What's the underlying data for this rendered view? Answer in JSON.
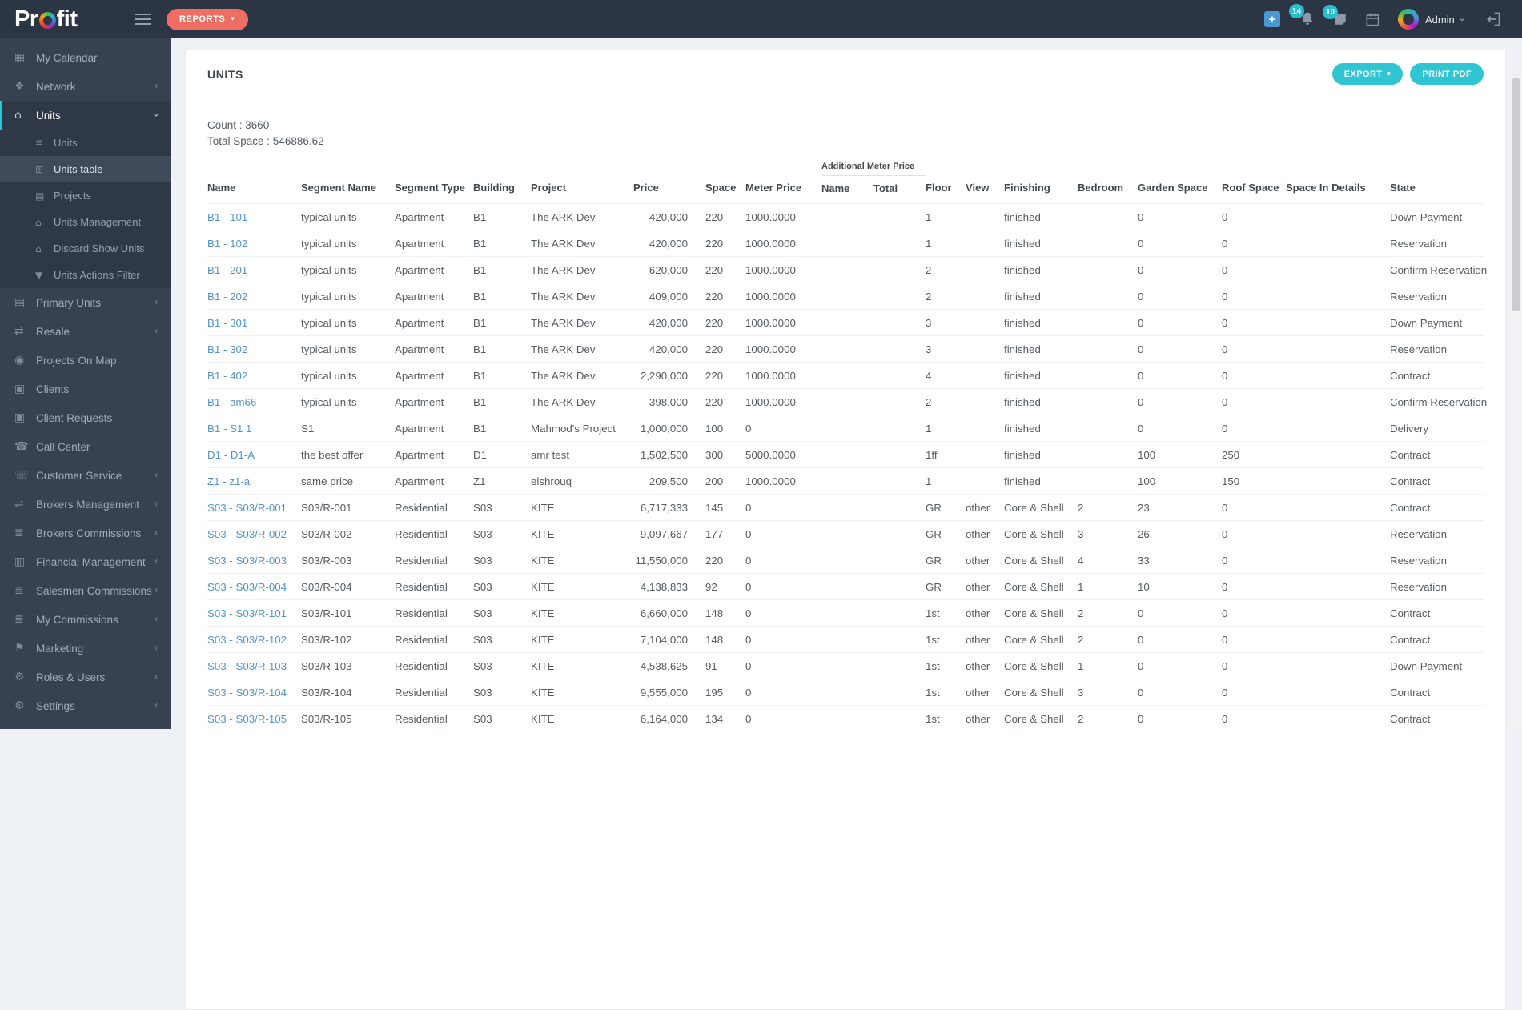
{
  "header": {
    "logo_pre": "Pr",
    "logo_post": "fit",
    "reports_button": "REPORTS",
    "notifications_badge": "14",
    "tasks_badge": "10",
    "user_name": "Admin"
  },
  "sidebar": {
    "items": [
      {
        "label": "My Calendar",
        "icon": "calendar-icon"
      },
      {
        "label": "Network",
        "icon": "network-users-icon",
        "chevron": "left"
      },
      {
        "label": "Units",
        "icon": "home-icon",
        "chevron": "down",
        "active": true
      },
      {
        "label": "Units",
        "icon": "units-list-icon",
        "sub": true
      },
      {
        "label": "Units table",
        "icon": "table-icon",
        "sub": true,
        "current": true
      },
      {
        "label": "Projects",
        "icon": "building-icon",
        "sub": true
      },
      {
        "label": "Units Management",
        "icon": "home-icon",
        "sub": true
      },
      {
        "label": "Discard Show Units",
        "icon": "home-icon",
        "sub": true
      },
      {
        "label": "Units Actions Filter",
        "icon": "filter-icon",
        "sub": true
      },
      {
        "label": "Primary Units",
        "icon": "building-icon",
        "chevron": "left"
      },
      {
        "label": "Resale",
        "icon": "resale-arrows-icon",
        "chevron": "left"
      },
      {
        "label": "Projects On Map",
        "icon": "map-pin-icon"
      },
      {
        "label": "Clients",
        "icon": "id-card-icon"
      },
      {
        "label": "Client Requests",
        "icon": "id-card-icon"
      },
      {
        "label": "Call Center",
        "icon": "phone-icon"
      },
      {
        "label": "Customer Service",
        "icon": "handshake-icon",
        "chevron": "left"
      },
      {
        "label": "Brokers Management",
        "icon": "shuffle-icon",
        "chevron": "left"
      },
      {
        "label": "Brokers Commissions",
        "icon": "money-list-icon",
        "chevron": "left"
      },
      {
        "label": "Financial Management",
        "icon": "bar-chart-icon",
        "chevron": "left"
      },
      {
        "label": "Salesmen Commissions",
        "icon": "money-list-icon",
        "chevron": "left"
      },
      {
        "label": "My Commissions",
        "icon": "money-list-icon",
        "chevron": "left"
      },
      {
        "label": "Marketing",
        "icon": "marketing-icon",
        "chevron": "left"
      },
      {
        "label": "Roles & Users",
        "icon": "gears-icon",
        "chevron": "left"
      },
      {
        "label": "Settings",
        "icon": "gear-icon",
        "chevron": "left"
      }
    ]
  },
  "main": {
    "title": "UNITS",
    "export_button": "EXPORT",
    "print_button": "PRINT PDF",
    "count_label": "Count : 3660",
    "total_space_label": "Total Space : 546886.62",
    "table": {
      "group_header": "Additional Meter Price",
      "columns": [
        "Name",
        "Segment Name",
        "Segment Type",
        "Building",
        "Project",
        "Price",
        "Space",
        "Meter Price",
        "Name",
        "Total",
        "Floor",
        "View",
        "Finishing",
        "Bedroom",
        "Garden Space",
        "Roof Space",
        "Space In Details",
        "State"
      ],
      "rows": [
        [
          "B1 - 101",
          "typical units",
          "Apartment",
          "B1",
          "The ARK Dev",
          "420,000",
          "220",
          "1000.0000",
          "",
          "",
          "1",
          "",
          "finished",
          "",
          "0",
          "0",
          "",
          "Down Payment"
        ],
        [
          "B1 - 102",
          "typical units",
          "Apartment",
          "B1",
          "The ARK Dev",
          "420,000",
          "220",
          "1000.0000",
          "",
          "",
          "1",
          "",
          "finished",
          "",
          "0",
          "0",
          "",
          "Reservation"
        ],
        [
          "B1 - 201",
          "typical units",
          "Apartment",
          "B1",
          "The ARK Dev",
          "620,000",
          "220",
          "1000.0000",
          "",
          "",
          "2",
          "",
          "finished",
          "",
          "0",
          "0",
          "",
          "Confirm Reservation"
        ],
        [
          "B1 - 202",
          "typical units",
          "Apartment",
          "B1",
          "The ARK Dev",
          "409,000",
          "220",
          "1000.0000",
          "",
          "",
          "2",
          "",
          "finished",
          "",
          "0",
          "0",
          "",
          "Reservation"
        ],
        [
          "B1 - 301",
          "typical units",
          "Apartment",
          "B1",
          "The ARK Dev",
          "420,000",
          "220",
          "1000.0000",
          "",
          "",
          "3",
          "",
          "finished",
          "",
          "0",
          "0",
          "",
          "Down Payment"
        ],
        [
          "B1 - 302",
          "typical units",
          "Apartment",
          "B1",
          "The ARK Dev",
          "420,000",
          "220",
          "1000.0000",
          "",
          "",
          "3",
          "",
          "finished",
          "",
          "0",
          "0",
          "",
          "Reservation"
        ],
        [
          "B1 - 402",
          "typical units",
          "Apartment",
          "B1",
          "The ARK Dev",
          "2,290,000",
          "220",
          "1000.0000",
          "",
          "",
          "4",
          "",
          "finished",
          "",
          "0",
          "0",
          "",
          "Contract"
        ],
        [
          "B1 - am66",
          "typical units",
          "Apartment",
          "B1",
          "The ARK Dev",
          "398,000",
          "220",
          "1000.0000",
          "",
          "",
          "2",
          "",
          "finished",
          "",
          "0",
          "0",
          "",
          "Confirm Reservation"
        ],
        [
          "B1 - S1 1",
          "S1",
          "Apartment",
          "B1",
          "Mahmod's Project",
          "1,000,000",
          "100",
          "0",
          "",
          "",
          "1",
          "",
          "finished",
          "",
          "0",
          "0",
          "",
          "Delivery"
        ],
        [
          "D1 - D1-A",
          "the best offer",
          "Apartment",
          "D1",
          "amr test",
          "1,502,500",
          "300",
          "5000.0000",
          "",
          "",
          "1ff",
          "",
          "finished",
          "",
          "100",
          "250",
          "",
          "Contract"
        ],
        [
          "Z1 - z1-a",
          "same price",
          "Apartment",
          "Z1",
          "elshrouq",
          "209,500",
          "200",
          "1000.0000",
          "",
          "",
          "1",
          "",
          "finished",
          "",
          "100",
          "150",
          "",
          "Contract"
        ],
        [
          "S03 - S03/R-001",
          "S03/R-001",
          "Residential",
          "S03",
          "KITE",
          "6,717,333",
          "145",
          "0",
          "",
          "",
          "GR",
          "other",
          "Core & Shell",
          "2",
          "23",
          "0",
          "",
          "Contract"
        ],
        [
          "S03 - S03/R-002",
          "S03/R-002",
          "Residential",
          "S03",
          "KITE",
          "9,097,667",
          "177",
          "0",
          "",
          "",
          "GR",
          "other",
          "Core & Shell",
          "3",
          "26",
          "0",
          "",
          "Reservation"
        ],
        [
          "S03 - S03/R-003",
          "S03/R-003",
          "Residential",
          "S03",
          "KITE",
          "11,550,000",
          "220",
          "0",
          "",
          "",
          "GR",
          "other",
          "Core & Shell",
          "4",
          "33",
          "0",
          "",
          "Reservation"
        ],
        [
          "S03 - S03/R-004",
          "S03/R-004",
          "Residential",
          "S03",
          "KITE",
          "4,138,833",
          "92",
          "0",
          "",
          "",
          "GR",
          "other",
          "Core & Shell",
          "1",
          "10",
          "0",
          "",
          "Reservation"
        ],
        [
          "S03 - S03/R-101",
          "S03/R-101",
          "Residential",
          "S03",
          "KITE",
          "6,660,000",
          "148",
          "0",
          "",
          "",
          "1st",
          "other",
          "Core & Shell",
          "2",
          "0",
          "0",
          "",
          "Contract"
        ],
        [
          "S03 - S03/R-102",
          "S03/R-102",
          "Residential",
          "S03",
          "KITE",
          "7,104,000",
          "148",
          "0",
          "",
          "",
          "1st",
          "other",
          "Core & Shell",
          "2",
          "0",
          "0",
          "",
          "Contract"
        ],
        [
          "S03 - S03/R-103",
          "S03/R-103",
          "Residential",
          "S03",
          "KITE",
          "4,538,625",
          "91",
          "0",
          "",
          "",
          "1st",
          "other",
          "Core & Shell",
          "1",
          "0",
          "0",
          "",
          "Down Payment"
        ],
        [
          "S03 - S03/R-104",
          "S03/R-104",
          "Residential",
          "S03",
          "KITE",
          "9,555,000",
          "195",
          "0",
          "",
          "",
          "1st",
          "other",
          "Core & Shell",
          "3",
          "0",
          "0",
          "",
          "Contract"
        ],
        [
          "S03 - S03/R-105",
          "S03/R-105",
          "Residential",
          "S03",
          "KITE",
          "6,164,000",
          "134",
          "0",
          "",
          "",
          "1st",
          "other",
          "Core & Shell",
          "2",
          "0",
          "0",
          "",
          "Contract"
        ]
      ]
    }
  },
  "colors": {
    "header_bg": "#2b3543",
    "sidebar_bg": "#37414f",
    "accent_cyan": "#2fc5d2",
    "accent_red": "#ef6e63",
    "badge_cyan": "#27bfcd",
    "link_blue": "#5494ca",
    "plus_blue": "#4a97d3",
    "content_bg": "#eef1f6"
  }
}
